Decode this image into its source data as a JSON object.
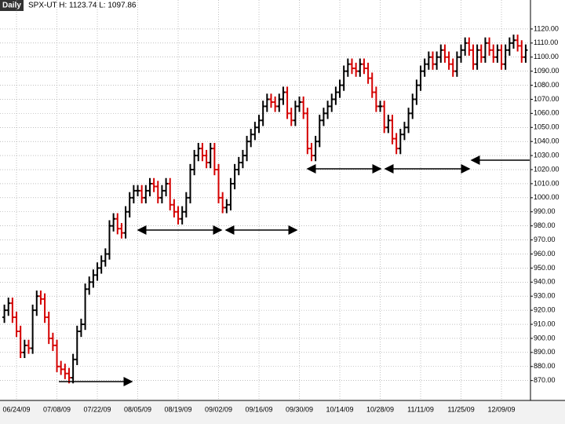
{
  "chart_data": {
    "type": "ohlc",
    "interval": "Daily",
    "title": "SPX-UT H: 1123.74 L: 1097.86",
    "up_color": "#000000",
    "down_color": "#d40000",
    "grid": true,
    "categories": [
      null,
      null,
      null,
      "06/24/09",
      null,
      null,
      null,
      null,
      null,
      null,
      null,
      null,
      null,
      "07/08/09",
      null,
      null,
      null,
      null,
      null,
      null,
      null,
      null,
      null,
      "07/22/09",
      null,
      null,
      null,
      null,
      null,
      null,
      null,
      null,
      null,
      "08/05/09",
      null,
      null,
      null,
      null,
      null,
      null,
      null,
      null,
      null,
      "08/19/09",
      null,
      null,
      null,
      null,
      null,
      null,
      null,
      null,
      null,
      "09/02/09",
      null,
      null,
      null,
      null,
      null,
      null,
      null,
      null,
      null,
      "09/16/09",
      null,
      null,
      null,
      null,
      null,
      null,
      null,
      null,
      null,
      "09/30/09",
      null,
      null,
      null,
      null,
      null,
      null,
      null,
      null,
      null,
      "10/14/09",
      null,
      null,
      null,
      null,
      null,
      null,
      null,
      null,
      null,
      "10/28/09",
      null,
      null,
      null,
      null,
      null,
      null,
      null,
      null,
      null,
      "11/11/09",
      null,
      null,
      null,
      null,
      null,
      null,
      null,
      null,
      null,
      "11/25/09",
      null,
      null,
      null,
      null,
      null,
      null,
      null,
      null,
      null,
      "12/09/09",
      null,
      null,
      null,
      null,
      null,
      null
    ],
    "open": [
      915,
      920,
      925,
      915,
      905,
      890,
      895,
      893,
      920,
      930,
      928,
      915,
      900,
      895,
      880,
      878,
      875,
      872,
      885,
      905,
      910,
      935,
      940,
      945,
      950,
      955,
      960,
      980,
      985,
      978,
      975,
      990,
      1000,
      1005,
      1005,
      1000,
      1005,
      1010,
      1008,
      1000,
      1005,
      1010,
      995,
      990,
      985,
      990,
      1000,
      1020,
      1030,
      1035,
      1030,
      1025,
      1035,
      1020,
      1000,
      993,
      995,
      1010,
      1020,
      1025,
      1030,
      1040,
      1045,
      1050,
      1055,
      1065,
      1070,
      1068,
      1065,
      1070,
      1075,
      1060,
      1055,
      1065,
      1068,
      1060,
      1035,
      1030,
      1040,
      1055,
      1060,
      1065,
      1070,
      1075,
      1080,
      1090,
      1095,
      1092,
      1090,
      1095,
      1092,
      1085,
      1075,
      1065,
      1065,
      1050,
      1055,
      1042,
      1035,
      1045,
      1050,
      1060,
      1070,
      1080,
      1090,
      1095,
      1100,
      1095,
      1100,
      1105,
      1100,
      1095,
      1090,
      1100,
      1105,
      1110,
      1105,
      1095,
      1105,
      1100,
      1110,
      1105,
      1100,
      1105,
      1095,
      1105,
      1110,
      1112,
      1108,
      1100
    ],
    "high": [
      924,
      929,
      929,
      919,
      909,
      899,
      899,
      924,
      934,
      934,
      932,
      919,
      904,
      899,
      884,
      882,
      879,
      889,
      909,
      914,
      939,
      944,
      949,
      954,
      959,
      964,
      984,
      989,
      989,
      982,
      994,
      1004,
      1009,
      1009,
      1009,
      1009,
      1014,
      1014,
      1012,
      1009,
      1014,
      1014,
      999,
      994,
      994,
      1004,
      1024,
      1034,
      1039,
      1039,
      1034,
      1039,
      1039,
      1024,
      1004,
      999,
      1014,
      1024,
      1029,
      1034,
      1044,
      1049,
      1054,
      1059,
      1069,
      1074,
      1074,
      1072,
      1074,
      1079,
      1079,
      1064,
      1069,
      1072,
      1072,
      1064,
      1039,
      1044,
      1059,
      1064,
      1069,
      1074,
      1079,
      1084,
      1094,
      1099,
      1099,
      1096,
      1099,
      1099,
      1096,
      1089,
      1079,
      1069,
      1069,
      1059,
      1059,
      1046,
      1049,
      1054,
      1064,
      1074,
      1084,
      1094,
      1099,
      1104,
      1104,
      1104,
      1109,
      1109,
      1104,
      1099,
      1104,
      1109,
      1114,
      1114,
      1109,
      1109,
      1109,
      1114,
      1114,
      1109,
      1109,
      1109,
      1109,
      1114,
      1116,
      1116,
      1112,
      1109
    ],
    "low": [
      911,
      916,
      911,
      901,
      886,
      886,
      889,
      889,
      916,
      924,
      911,
      896,
      891,
      876,
      874,
      871,
      868,
      868,
      881,
      901,
      906,
      931,
      936,
      941,
      946,
      951,
      956,
      976,
      974,
      971,
      971,
      986,
      996,
      1001,
      996,
      996,
      1001,
      1004,
      996,
      996,
      1001,
      991,
      986,
      981,
      981,
      986,
      996,
      1016,
      1026,
      1026,
      1021,
      1021,
      1016,
      996,
      989,
      989,
      991,
      1006,
      1016,
      1021,
      1026,
      1036,
      1041,
      1046,
      1051,
      1061,
      1064,
      1061,
      1061,
      1066,
      1056,
      1051,
      1051,
      1061,
      1056,
      1031,
      1026,
      1026,
      1036,
      1051,
      1056,
      1061,
      1066,
      1071,
      1076,
      1086,
      1088,
      1086,
      1086,
      1088,
      1081,
      1071,
      1061,
      1061,
      1046,
      1046,
      1038,
      1031,
      1031,
      1041,
      1046,
      1056,
      1066,
      1076,
      1086,
      1091,
      1091,
      1091,
      1096,
      1096,
      1091,
      1086,
      1086,
      1096,
      1101,
      1101,
      1091,
      1091,
      1096,
      1096,
      1101,
      1096,
      1096,
      1091,
      1091,
      1101,
      1106,
      1104,
      1096,
      1096
    ],
    "close": [
      920,
      925,
      915,
      905,
      890,
      895,
      893,
      920,
      930,
      928,
      915,
      900,
      895,
      880,
      878,
      875,
      872,
      885,
      905,
      910,
      935,
      940,
      945,
      950,
      955,
      960,
      980,
      985,
      978,
      975,
      990,
      1000,
      1005,
      1005,
      1000,
      1005,
      1010,
      1008,
      1000,
      1005,
      1010,
      995,
      990,
      985,
      990,
      1000,
      1020,
      1030,
      1035,
      1030,
      1025,
      1035,
      1020,
      1000,
      993,
      995,
      1010,
      1020,
      1025,
      1030,
      1040,
      1045,
      1050,
      1055,
      1065,
      1070,
      1068,
      1065,
      1070,
      1075,
      1060,
      1055,
      1065,
      1068,
      1060,
      1035,
      1030,
      1040,
      1055,
      1060,
      1065,
      1070,
      1075,
      1080,
      1090,
      1095,
      1092,
      1090,
      1095,
      1092,
      1085,
      1075,
      1065,
      1065,
      1050,
      1055,
      1042,
      1035,
      1045,
      1050,
      1060,
      1070,
      1080,
      1090,
      1095,
      1100,
      1095,
      1100,
      1105,
      1100,
      1095,
      1090,
      1100,
      1105,
      1110,
      1105,
      1095,
      1105,
      1100,
      1110,
      1105,
      1100,
      1105,
      1095,
      1105,
      1110,
      1112,
      1108,
      1100,
      1105
    ],
    "ylim": [
      862,
      1130
    ],
    "yticks": [
      {
        "value": 870,
        "label": "870.00"
      },
      {
        "value": 880,
        "label": "880.00"
      },
      {
        "value": 890,
        "label": "890.00"
      },
      {
        "value": 900,
        "label": "900.00"
      },
      {
        "value": 910,
        "label": "910.00"
      },
      {
        "value": 920,
        "label": "920.00"
      },
      {
        "value": 930,
        "label": "930.00"
      },
      {
        "value": 940,
        "label": "940.00"
      },
      {
        "value": 950,
        "label": "950.00"
      },
      {
        "value": 960,
        "label": "960.00"
      },
      {
        "value": 970,
        "label": "970.00"
      },
      {
        "value": 980,
        "label": "980.00"
      },
      {
        "value": 990,
        "label": "990.00"
      },
      {
        "value": 1000,
        "label": "1000.00"
      },
      {
        "value": 1010,
        "label": "1010.00"
      },
      {
        "value": 1020,
        "label": "1020.00"
      },
      {
        "value": 1030,
        "label": "1030.00"
      },
      {
        "value": 1040,
        "label": "1040.00"
      },
      {
        "value": 1050,
        "label": "1050.00"
      },
      {
        "value": 1060,
        "label": "1060.00"
      },
      {
        "value": 1070,
        "label": "1070.00"
      },
      {
        "value": 1080,
        "label": "1080.00"
      },
      {
        "value": 1090,
        "label": "1090.00"
      },
      {
        "value": 1100,
        "label": "1100.00"
      },
      {
        "value": 1110,
        "label": "1110.00"
      },
      {
        "value": 1120,
        "label": "1120.00"
      }
    ]
  }
}
